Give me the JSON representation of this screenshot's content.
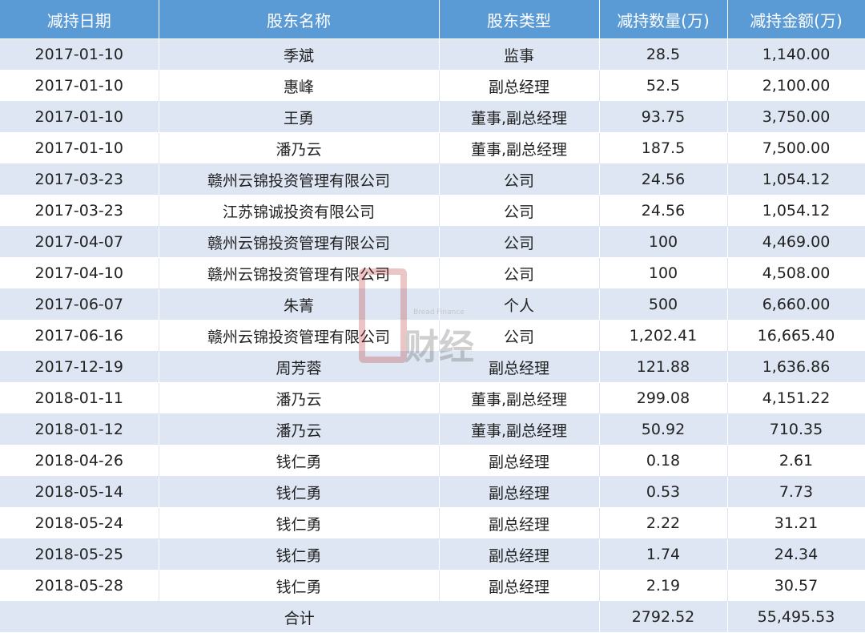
{
  "headers": [
    "减持日期",
    "股东名称",
    "股东类型",
    "减持数量(万)",
    "减持金额(万)"
  ],
  "rows": [
    [
      "2017-01-10",
      "季斌",
      "监事",
      "28.5",
      "1,140.00"
    ],
    [
      "2017-01-10",
      "惠峰",
      "副总经理",
      "52.5",
      "2,100.00"
    ],
    [
      "2017-01-10",
      "王勇",
      "董事,副总经理",
      "93.75",
      "3,750.00"
    ],
    [
      "2017-01-10",
      "潘乃云",
      "董事,副总经理",
      "187.5",
      "7,500.00"
    ],
    [
      "2017-03-23",
      "赣州云锦投资管理有限公司",
      "公司",
      "24.56",
      "1,054.12"
    ],
    [
      "2017-03-23",
      "江苏锦诚投资有限公司",
      "公司",
      "24.56",
      "1,054.12"
    ],
    [
      "2017-04-07",
      "赣州云锦投资管理有限公司",
      "公司",
      "100",
      "4,469.00"
    ],
    [
      "2017-04-10",
      "赣州云锦投资管理有限公司",
      "公司",
      "100",
      "4,508.00"
    ],
    [
      "2017-06-07",
      "朱菁",
      "个人",
      "500",
      "6,660.00"
    ],
    [
      "2017-06-16",
      "赣州云锦投资管理有限公司",
      "公司",
      "1,202.41",
      "16,665.40"
    ],
    [
      "2017-12-19",
      "周芳蓉",
      "副总经理",
      "121.88",
      "1,636.86"
    ],
    [
      "2018-01-11",
      "潘乃云",
      "董事,副总经理",
      "299.08",
      "4,151.22"
    ],
    [
      "2018-01-12",
      "潘乃云",
      "董事,副总经理",
      "50.92",
      "710.35"
    ],
    [
      "2018-04-26",
      "钱仁勇",
      "副总经理",
      "0.18",
      "2.61"
    ],
    [
      "2018-05-14",
      "钱仁勇",
      "副总经理",
      "0.53",
      "7.73"
    ],
    [
      "2018-05-24",
      "钱仁勇",
      "副总经理",
      "2.22",
      "31.21"
    ],
    [
      "2018-05-25",
      "钱仁勇",
      "副总经理",
      "1.74",
      "24.34"
    ],
    [
      "2018-05-28",
      "钱仁勇",
      "副总经理",
      "2.19",
      "30.57"
    ]
  ],
  "total": {
    "label": "合计",
    "quantity": "2792.52",
    "amount": "55,495.53"
  },
  "watermark": {
    "en": "Bread Finance",
    "cn": "财经"
  },
  "colors": {
    "header": "#5b9bd5",
    "stripe": "#dde6f2"
  }
}
